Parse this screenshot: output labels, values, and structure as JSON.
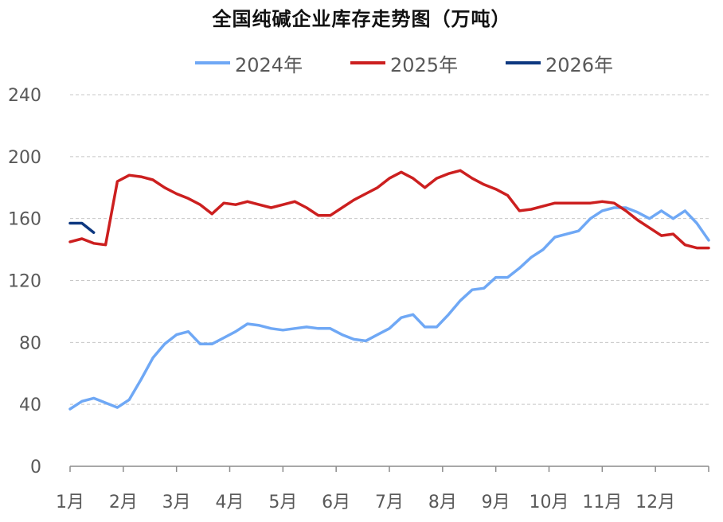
{
  "chart_data": {
    "type": "line",
    "title": "全国纯碱企业库存走势图（万吨）",
    "xlabel": "",
    "ylabel": "",
    "ylim": [
      0,
      240
    ],
    "yticks": [
      0,
      40,
      80,
      120,
      160,
      200,
      240
    ],
    "x_categories": [
      "1月",
      "2月",
      "3月",
      "4月",
      "5月",
      "6月",
      "7月",
      "8月",
      "9月",
      "10月",
      "11月",
      "12月"
    ],
    "x_domain_weeks": [
      0,
      52
    ],
    "grid": true,
    "legend_position": "top-center",
    "series": [
      {
        "name": "2024年",
        "color": "#6FA8F5",
        "points": [
          [
            0,
            37
          ],
          [
            1,
            42
          ],
          [
            2,
            44
          ],
          [
            3,
            41
          ],
          [
            4,
            38
          ],
          [
            5,
            43
          ],
          [
            6,
            56
          ],
          [
            7,
            70
          ],
          [
            8,
            79
          ],
          [
            9,
            85
          ],
          [
            10,
            87
          ],
          [
            11,
            79
          ],
          [
            12,
            79
          ],
          [
            13,
            83
          ],
          [
            14,
            87
          ],
          [
            15,
            92
          ],
          [
            16,
            91
          ],
          [
            17,
            89
          ],
          [
            18,
            88
          ],
          [
            19,
            89
          ],
          [
            20,
            90
          ],
          [
            21,
            89
          ],
          [
            22,
            89
          ],
          [
            23,
            85
          ],
          [
            24,
            82
          ],
          [
            25,
            81
          ],
          [
            26,
            85
          ],
          [
            27,
            89
          ],
          [
            28,
            96
          ],
          [
            29,
            98
          ],
          [
            30,
            90
          ],
          [
            31,
            90
          ],
          [
            32,
            98
          ],
          [
            33,
            107
          ],
          [
            34,
            114
          ],
          [
            35,
            115
          ],
          [
            36,
            122
          ],
          [
            37,
            122
          ],
          [
            38,
            128
          ],
          [
            39,
            135
          ],
          [
            40,
            140
          ],
          [
            41,
            148
          ],
          [
            42,
            150
          ],
          [
            43,
            152
          ],
          [
            44,
            160
          ],
          [
            45,
            165
          ],
          [
            46,
            167
          ],
          [
            47,
            167
          ],
          [
            48,
            164
          ],
          [
            49,
            160
          ],
          [
            50,
            165
          ],
          [
            51,
            160
          ],
          [
            52,
            165
          ],
          [
            53,
            157
          ],
          [
            54,
            146
          ]
        ]
      },
      {
        "name": "2025年",
        "color": "#CC1F1F",
        "points": [
          [
            0,
            145
          ],
          [
            1,
            147
          ],
          [
            2,
            144
          ],
          [
            3,
            143
          ],
          [
            4,
            184
          ],
          [
            5,
            188
          ],
          [
            6,
            187
          ],
          [
            7,
            185
          ],
          [
            8,
            180
          ],
          [
            9,
            176
          ],
          [
            10,
            173
          ],
          [
            11,
            169
          ],
          [
            12,
            163
          ],
          [
            13,
            170
          ],
          [
            14,
            169
          ],
          [
            15,
            171
          ],
          [
            16,
            169
          ],
          [
            17,
            167
          ],
          [
            18,
            169
          ],
          [
            19,
            171
          ],
          [
            20,
            167
          ],
          [
            21,
            162
          ],
          [
            22,
            162
          ],
          [
            23,
            167
          ],
          [
            24,
            172
          ],
          [
            25,
            176
          ],
          [
            26,
            180
          ],
          [
            27,
            186
          ],
          [
            28,
            190
          ],
          [
            29,
            186
          ],
          [
            30,
            180
          ],
          [
            31,
            186
          ],
          [
            32,
            189
          ],
          [
            33,
            191
          ],
          [
            34,
            186
          ],
          [
            35,
            182
          ],
          [
            36,
            179
          ],
          [
            37,
            175
          ],
          [
            38,
            165
          ],
          [
            39,
            166
          ],
          [
            40,
            168
          ],
          [
            41,
            170
          ],
          [
            42,
            170
          ],
          [
            43,
            170
          ],
          [
            44,
            170
          ],
          [
            45,
            171
          ],
          [
            46,
            170
          ],
          [
            47,
            165
          ],
          [
            48,
            159
          ],
          [
            49,
            154
          ],
          [
            50,
            149
          ],
          [
            51,
            150
          ],
          [
            52,
            143
          ],
          [
            53,
            141
          ],
          [
            54,
            141
          ]
        ]
      },
      {
        "name": "2026年",
        "color": "#0D3880",
        "points": [
          [
            0,
            157
          ],
          [
            1,
            157
          ],
          [
            2,
            151
          ]
        ]
      }
    ]
  }
}
